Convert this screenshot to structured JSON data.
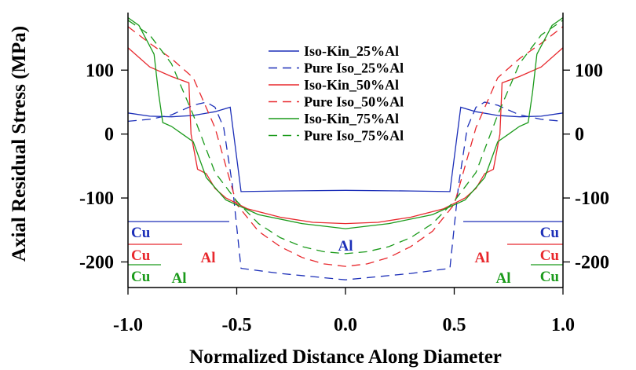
{
  "chart_data": {
    "type": "line",
    "xlabel": "Normalized Distance Along Diameter",
    "ylabel": "Axial Residual Stress (MPa)",
    "xlim": [
      -1.0,
      1.0
    ],
    "ylim": [
      -240,
      190
    ],
    "x_ticks": [
      {
        "value": -1.0,
        "label": "-1.0"
      },
      {
        "value": -0.5,
        "label": "-0.5"
      },
      {
        "value": 0.0,
        "label": "0.0"
      },
      {
        "value": 0.5,
        "label": "0.5"
      },
      {
        "value": 1.0,
        "label": "1.0"
      }
    ],
    "y_ticks_left": [
      {
        "value": 100,
        "label": "100"
      },
      {
        "value": 0,
        "label": "0"
      },
      {
        "value": -100,
        "label": "-100"
      },
      {
        "value": -200,
        "label": "-200"
      }
    ],
    "y_ticks_right": [
      {
        "value": 100,
        "label": "100"
      },
      {
        "value": 0,
        "label": "0"
      },
      {
        "value": -100,
        "label": "-100"
      },
      {
        "value": -200,
        "label": "-200"
      }
    ],
    "grid": false,
    "legend_position": "top-center",
    "series": [
      {
        "name": "Iso-Kin_25%Al",
        "color": "#1c2fb8",
        "dash": "solid",
        "x": [
          -1.0,
          -0.9,
          -0.8,
          -0.7,
          -0.6,
          -0.53,
          -0.48,
          -0.3,
          0.0,
          0.3,
          0.48,
          0.53,
          0.6,
          0.7,
          0.8,
          0.9,
          1.0
        ],
        "y": [
          33,
          28,
          27,
          29,
          35,
          42,
          -90,
          -89,
          -88,
          -89,
          -90,
          42,
          35,
          29,
          27,
          28,
          33
        ]
      },
      {
        "name": "Pure Iso_25%Al",
        "color": "#1c2fb8",
        "dash": "dashed",
        "x": [
          -1.0,
          -0.9,
          -0.8,
          -0.7,
          -0.64,
          -0.6,
          -0.56,
          -0.52,
          -0.48,
          -0.3,
          0.0,
          0.3,
          0.48,
          0.52,
          0.56,
          0.6,
          0.64,
          0.7,
          0.8,
          0.9,
          1.0
        ],
        "y": [
          20,
          23,
          30,
          45,
          50,
          42,
          10,
          -80,
          -210,
          -218,
          -228,
          -218,
          -210,
          -80,
          10,
          42,
          50,
          45,
          30,
          23,
          20
        ]
      },
      {
        "name": "Iso-Kin_50%Al",
        "color": "#e8282d",
        "dash": "solid",
        "x": [
          -1.0,
          -0.9,
          -0.8,
          -0.72,
          -0.71,
          -0.68,
          -0.64,
          -0.6,
          -0.55,
          -0.45,
          -0.3,
          -0.15,
          0.0,
          0.15,
          0.3,
          0.45,
          0.55,
          0.6,
          0.64,
          0.68,
          0.71,
          0.72,
          0.8,
          0.9,
          1.0
        ],
        "y": [
          135,
          105,
          90,
          80,
          0,
          -55,
          -62,
          -85,
          -100,
          -117,
          -130,
          -138,
          -140,
          -138,
          -130,
          -117,
          -100,
          -85,
          -62,
          -55,
          0,
          80,
          90,
          105,
          135
        ]
      },
      {
        "name": "Pure Iso_50%Al",
        "color": "#e8282d",
        "dash": "dashed",
        "x": [
          -1.0,
          -0.9,
          -0.8,
          -0.7,
          -0.6,
          -0.5,
          -0.4,
          -0.3,
          -0.2,
          -0.1,
          0.0,
          0.1,
          0.2,
          0.3,
          0.4,
          0.5,
          0.6,
          0.7,
          0.8,
          0.9,
          1.0
        ],
        "y": [
          168,
          142,
          118,
          88,
          10,
          -110,
          -152,
          -176,
          -193,
          -203,
          -207,
          -203,
          -193,
          -176,
          -152,
          -110,
          10,
          88,
          118,
          142,
          168
        ]
      },
      {
        "name": "Iso-Kin_75%Al",
        "color": "#1a9a1a",
        "dash": "solid",
        "x": [
          -1.0,
          -0.95,
          -0.88,
          -0.86,
          -0.84,
          -0.8,
          -0.75,
          -0.7,
          -0.64,
          -0.55,
          -0.4,
          -0.2,
          0.0,
          0.2,
          0.4,
          0.55,
          0.64,
          0.7,
          0.75,
          0.8,
          0.84,
          0.86,
          0.88,
          0.95,
          1.0
        ],
        "y": [
          182,
          170,
          125,
          65,
          18,
          12,
          0,
          -12,
          -68,
          -103,
          -126,
          -140,
          -148,
          -140,
          -126,
          -103,
          -68,
          -12,
          0,
          12,
          18,
          65,
          125,
          170,
          182
        ]
      },
      {
        "name": "Pure Iso_75%Al",
        "color": "#1a9a1a",
        "dash": "dashed",
        "x": [
          -1.0,
          -0.9,
          -0.8,
          -0.7,
          -0.6,
          -0.5,
          -0.4,
          -0.3,
          -0.2,
          -0.1,
          0.0,
          0.1,
          0.2,
          0.3,
          0.4,
          0.5,
          0.6,
          0.7,
          0.8,
          0.9,
          1.0
        ],
        "y": [
          178,
          155,
          110,
          30,
          -60,
          -105,
          -140,
          -162,
          -176,
          -184,
          -187,
          -184,
          -176,
          -162,
          -140,
          -105,
          -60,
          30,
          110,
          155,
          178
        ]
      }
    ],
    "annotations": [
      {
        "text": "Cu",
        "color": "#1c2fb8"
      },
      {
        "text": "Cu",
        "color": "#e8282d"
      },
      {
        "text": "Cu",
        "color": "#1a9a1a"
      },
      {
        "text": "Al",
        "color": "#e8282d"
      },
      {
        "text": "Al",
        "color": "#1a9a1a"
      },
      {
        "text": "Al",
        "color": "#1c2fb8"
      },
      {
        "text": "Al",
        "color": "#e8282d"
      },
      {
        "text": "Al",
        "color": "#1a9a1a"
      },
      {
        "text": "Cu",
        "color": "#1c2fb8"
      },
      {
        "text": "Cu",
        "color": "#e8282d"
      },
      {
        "text": "Cu",
        "color": "#1a9a1a"
      }
    ]
  }
}
